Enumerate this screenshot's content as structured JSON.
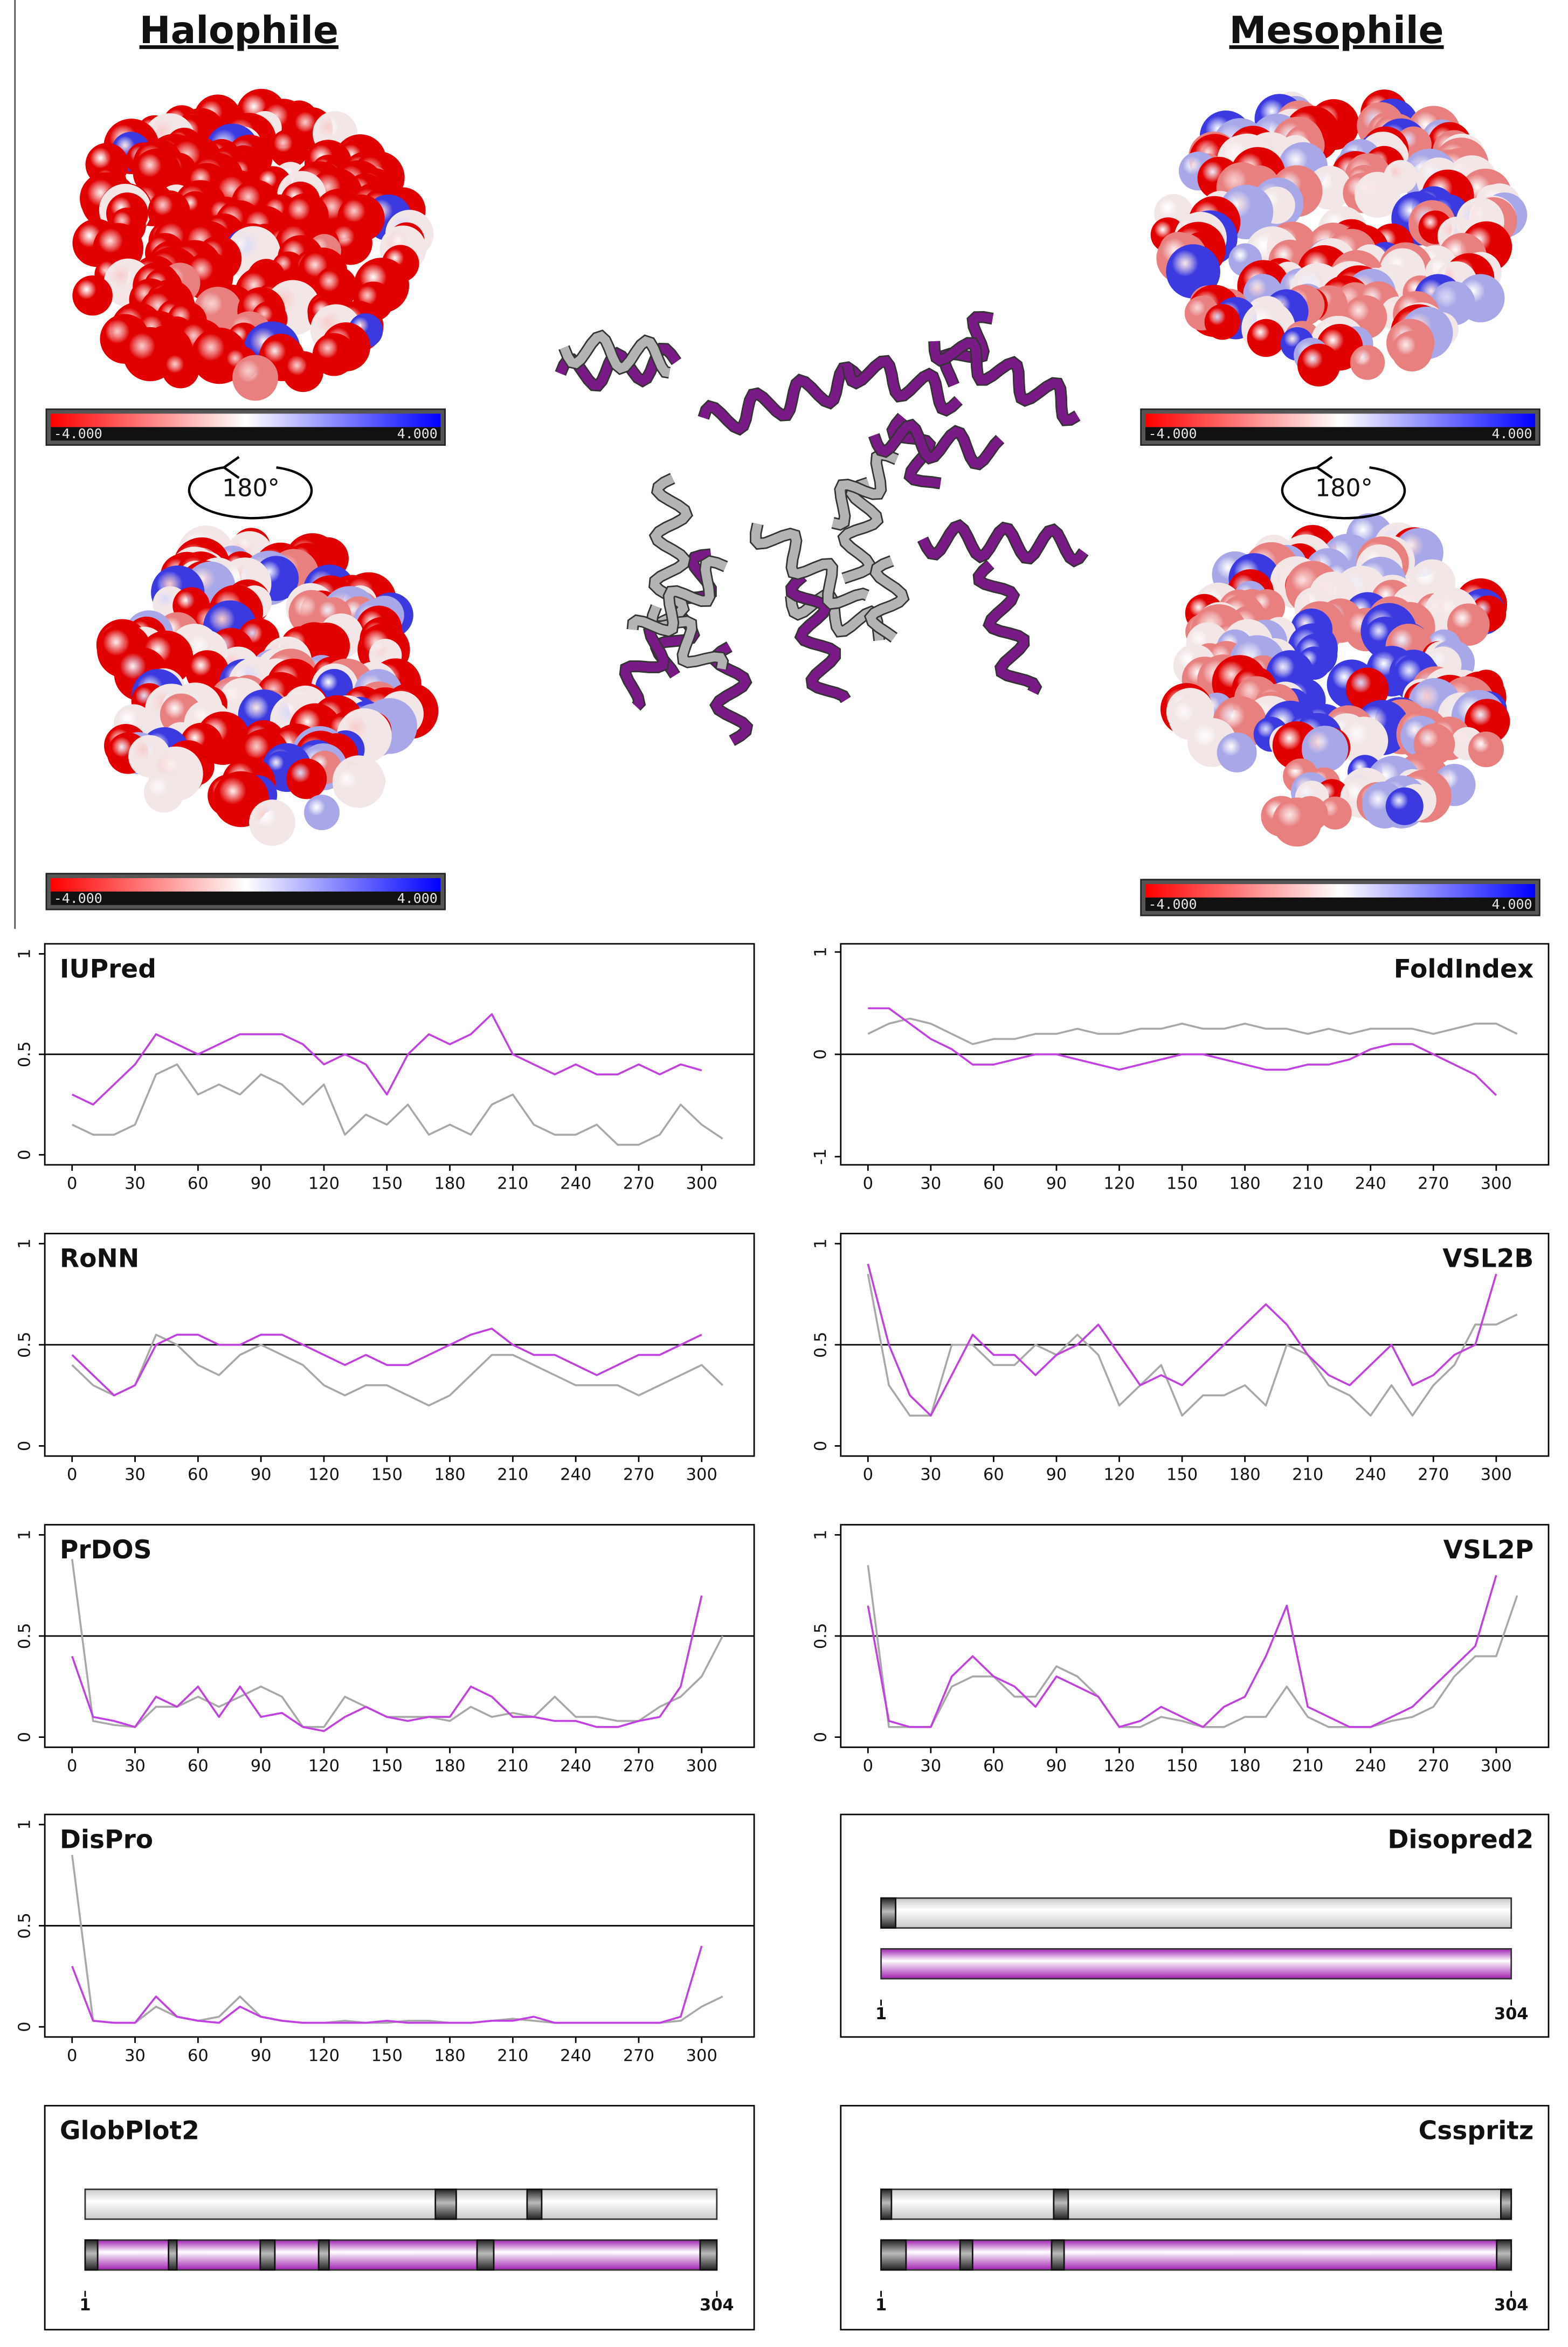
{
  "figure": {
    "halophile_title": "Halophile",
    "mesophile_title": "Mesophile",
    "rotation_label": "180°",
    "colorbar": {
      "colors": [
        "#ff0000",
        "#ffffff",
        "#0000ff"
      ],
      "lim": [
        {
          "value": -4,
          "label": "-4.000"
        },
        {
          "value": 4,
          "label": "4.000"
        }
      ]
    }
  },
  "chart_data": [
    {
      "type": "line",
      "title": "IUPred",
      "x": [
        0,
        10,
        20,
        30,
        40,
        50,
        60,
        70,
        80,
        90,
        100,
        110,
        120,
        130,
        140,
        150,
        160,
        170,
        180,
        190,
        200,
        210,
        220,
        230,
        240,
        250,
        260,
        270,
        280,
        290,
        300,
        310
      ],
      "xlim": [
        -13,
        325
      ],
      "xticks": [
        0,
        30,
        60,
        90,
        120,
        150,
        180,
        210,
        240,
        270,
        300
      ],
      "ylim": [
        -0.05,
        1.05
      ],
      "yticks": [
        0,
        0.5,
        1
      ],
      "threshold": 0.5,
      "series": [
        {
          "color": "#a8a8a8",
          "values": [
            0.15,
            0.1,
            0.1,
            0.15,
            0.4,
            0.45,
            0.3,
            0.35,
            0.3,
            0.4,
            0.35,
            0.25,
            0.35,
            0.1,
            0.2,
            0.15,
            0.25,
            0.1,
            0.15,
            0.1,
            0.25,
            0.3,
            0.15,
            0.1,
            0.1,
            0.15,
            0.05,
            0.05,
            0.1,
            0.25,
            0.15,
            0.08
          ]
        },
        {
          "color": "#c040e0",
          "values": [
            0.3,
            0.25,
            0.35,
            0.45,
            0.6,
            0.55,
            0.5,
            0.55,
            0.6,
            0.6,
            0.6,
            0.55,
            0.45,
            0.5,
            0.45,
            0.3,
            0.5,
            0.6,
            0.55,
            0.6,
            0.7,
            0.5,
            0.45,
            0.4,
            0.45,
            0.4,
            0.4,
            0.45,
            0.4,
            0.45,
            0.42,
            null
          ]
        }
      ]
    },
    {
      "type": "line",
      "title": "FoldIndex",
      "x": [
        0,
        10,
        20,
        30,
        40,
        50,
        60,
        70,
        80,
        90,
        100,
        110,
        120,
        130,
        140,
        150,
        160,
        170,
        180,
        190,
        200,
        210,
        220,
        230,
        240,
        250,
        260,
        270,
        280,
        290,
        300,
        310
      ],
      "xlim": [
        -13,
        325
      ],
      "xticks": [
        0,
        30,
        60,
        90,
        120,
        150,
        180,
        210,
        240,
        270,
        300
      ],
      "ylim": [
        -1.08,
        1.08
      ],
      "yticks": [
        -1,
        0,
        1
      ],
      "threshold": 0,
      "series": [
        {
          "color": "#a8a8a8",
          "values": [
            0.2,
            0.3,
            0.35,
            0.3,
            0.2,
            0.1,
            0.15,
            0.15,
            0.2,
            0.2,
            0.25,
            0.2,
            0.2,
            0.25,
            0.25,
            0.3,
            0.25,
            0.25,
            0.3,
            0.25,
            0.25,
            0.2,
            0.25,
            0.2,
            0.25,
            0.25,
            0.25,
            0.2,
            0.25,
            0.3,
            0.3,
            0.2
          ]
        },
        {
          "color": "#c040e0",
          "values": [
            0.45,
            0.45,
            0.3,
            0.15,
            0.05,
            -0.1,
            -0.1,
            -0.05,
            0,
            0,
            -0.05,
            -0.1,
            -0.15,
            -0.1,
            -0.05,
            0,
            0,
            -0.05,
            -0.1,
            -0.15,
            -0.15,
            -0.1,
            -0.1,
            -0.05,
            0.05,
            0.1,
            0.1,
            0,
            -0.1,
            -0.2,
            -0.4,
            null
          ]
        }
      ]
    },
    {
      "type": "line",
      "title": "RoNN",
      "x": [
        0,
        10,
        20,
        30,
        40,
        50,
        60,
        70,
        80,
        90,
        100,
        110,
        120,
        130,
        140,
        150,
        160,
        170,
        180,
        190,
        200,
        210,
        220,
        230,
        240,
        250,
        260,
        270,
        280,
        290,
        300,
        310
      ],
      "xlim": [
        -13,
        325
      ],
      "xticks": [
        0,
        30,
        60,
        90,
        120,
        150,
        180,
        210,
        240,
        270,
        300
      ],
      "ylim": [
        -0.05,
        1.05
      ],
      "yticks": [
        0,
        0.5,
        1
      ],
      "threshold": 0.5,
      "series": [
        {
          "color": "#a8a8a8",
          "values": [
            0.4,
            0.3,
            0.25,
            0.3,
            0.55,
            0.5,
            0.4,
            0.35,
            0.45,
            0.5,
            0.45,
            0.4,
            0.3,
            0.25,
            0.3,
            0.3,
            0.25,
            0.2,
            0.25,
            0.35,
            0.45,
            0.45,
            0.4,
            0.35,
            0.3,
            0.3,
            0.3,
            0.25,
            0.3,
            0.35,
            0.4,
            0.3
          ]
        },
        {
          "color": "#c040e0",
          "values": [
            0.45,
            0.35,
            0.25,
            0.3,
            0.5,
            0.55,
            0.55,
            0.5,
            0.5,
            0.55,
            0.55,
            0.5,
            0.45,
            0.4,
            0.45,
            0.4,
            0.4,
            0.45,
            0.5,
            0.55,
            0.58,
            0.5,
            0.45,
            0.45,
            0.4,
            0.35,
            0.4,
            0.45,
            0.45,
            0.5,
            0.55,
            null
          ]
        }
      ]
    },
    {
      "type": "line",
      "title": "VSL2B",
      "x": [
        0,
        10,
        20,
        30,
        40,
        50,
        60,
        70,
        80,
        90,
        100,
        110,
        120,
        130,
        140,
        150,
        160,
        170,
        180,
        190,
        200,
        210,
        220,
        230,
        240,
        250,
        260,
        270,
        280,
        290,
        300,
        310
      ],
      "xlim": [
        -13,
        325
      ],
      "xticks": [
        0,
        30,
        60,
        90,
        120,
        150,
        180,
        210,
        240,
        270,
        300
      ],
      "ylim": [
        -0.05,
        1.05
      ],
      "yticks": [
        0,
        0.5,
        1
      ],
      "threshold": 0.5,
      "series": [
        {
          "color": "#a8a8a8",
          "values": [
            0.85,
            0.3,
            0.15,
            0.15,
            0.5,
            0.5,
            0.4,
            0.4,
            0.5,
            0.45,
            0.55,
            0.45,
            0.2,
            0.3,
            0.4,
            0.15,
            0.25,
            0.25,
            0.3,
            0.2,
            0.5,
            0.45,
            0.3,
            0.25,
            0.15,
            0.3,
            0.15,
            0.3,
            0.4,
            0.6,
            0.6,
            0.65
          ]
        },
        {
          "color": "#c040e0",
          "values": [
            0.9,
            0.5,
            0.25,
            0.15,
            0.35,
            0.55,
            0.45,
            0.45,
            0.35,
            0.45,
            0.5,
            0.6,
            0.45,
            0.3,
            0.35,
            0.3,
            0.4,
            0.5,
            0.6,
            0.7,
            0.6,
            0.45,
            0.35,
            0.3,
            0.4,
            0.5,
            0.3,
            0.35,
            0.45,
            0.5,
            0.85,
            null
          ]
        }
      ]
    },
    {
      "type": "line",
      "title": "PrDOS",
      "x": [
        0,
        10,
        20,
        30,
        40,
        50,
        60,
        70,
        80,
        90,
        100,
        110,
        120,
        130,
        140,
        150,
        160,
        170,
        180,
        190,
        200,
        210,
        220,
        230,
        240,
        250,
        260,
        270,
        280,
        290,
        300,
        310
      ],
      "xlim": [
        -13,
        325
      ],
      "xticks": [
        0,
        30,
        60,
        90,
        120,
        150,
        180,
        210,
        240,
        270,
        300
      ],
      "ylim": [
        -0.05,
        1.05
      ],
      "yticks": [
        0,
        0.5,
        1
      ],
      "threshold": 0.5,
      "series": [
        {
          "color": "#a8a8a8",
          "values": [
            0.88,
            0.08,
            0.06,
            0.05,
            0.15,
            0.15,
            0.2,
            0.15,
            0.2,
            0.25,
            0.2,
            0.05,
            0.05,
            0.2,
            0.15,
            0.1,
            0.1,
            0.1,
            0.08,
            0.15,
            0.1,
            0.12,
            0.1,
            0.2,
            0.1,
            0.1,
            0.08,
            0.08,
            0.15,
            0.2,
            0.3,
            0.5
          ]
        },
        {
          "color": "#c040e0",
          "values": [
            0.4,
            0.1,
            0.08,
            0.05,
            0.2,
            0.15,
            0.25,
            0.1,
            0.25,
            0.1,
            0.12,
            0.05,
            0.03,
            0.1,
            0.15,
            0.1,
            0.08,
            0.1,
            0.1,
            0.25,
            0.2,
            0.1,
            0.1,
            0.08,
            0.08,
            0.05,
            0.05,
            0.08,
            0.1,
            0.25,
            0.7,
            null
          ]
        }
      ]
    },
    {
      "type": "line",
      "title": "VSL2P",
      "x": [
        0,
        10,
        20,
        30,
        40,
        50,
        60,
        70,
        80,
        90,
        100,
        110,
        120,
        130,
        140,
        150,
        160,
        170,
        180,
        190,
        200,
        210,
        220,
        230,
        240,
        250,
        260,
        270,
        280,
        290,
        300,
        310
      ],
      "xlim": [
        -13,
        325
      ],
      "xticks": [
        0,
        30,
        60,
        90,
        120,
        150,
        180,
        210,
        240,
        270,
        300
      ],
      "ylim": [
        -0.05,
        1.05
      ],
      "yticks": [
        0,
        0.5,
        1
      ],
      "threshold": 0.5,
      "series": [
        {
          "color": "#a8a8a8",
          "values": [
            0.85,
            0.05,
            0.05,
            0.05,
            0.25,
            0.3,
            0.3,
            0.2,
            0.2,
            0.35,
            0.3,
            0.2,
            0.05,
            0.05,
            0.1,
            0.08,
            0.05,
            0.05,
            0.1,
            0.1,
            0.25,
            0.1,
            0.05,
            0.05,
            0.05,
            0.08,
            0.1,
            0.15,
            0.3,
            0.4,
            0.4,
            0.7
          ]
        },
        {
          "color": "#c040e0",
          "values": [
            0.65,
            0.08,
            0.05,
            0.05,
            0.3,
            0.4,
            0.3,
            0.25,
            0.15,
            0.3,
            0.25,
            0.2,
            0.05,
            0.08,
            0.15,
            0.1,
            0.05,
            0.15,
            0.2,
            0.4,
            0.65,
            0.15,
            0.1,
            0.05,
            0.05,
            0.1,
            0.15,
            0.25,
            0.35,
            0.45,
            0.8,
            null
          ]
        }
      ]
    },
    {
      "type": "line",
      "title": "DisPro",
      "x": [
        0,
        10,
        20,
        30,
        40,
        50,
        60,
        70,
        80,
        90,
        100,
        110,
        120,
        130,
        140,
        150,
        160,
        170,
        180,
        190,
        200,
        210,
        220,
        230,
        240,
        250,
        260,
        270,
        280,
        290,
        300,
        310
      ],
      "xlim": [
        -13,
        325
      ],
      "xticks": [
        0,
        30,
        60,
        90,
        120,
        150,
        180,
        210,
        240,
        270,
        300
      ],
      "ylim": [
        -0.05,
        1.05
      ],
      "yticks": [
        0,
        0.5,
        1
      ],
      "threshold": 0.5,
      "series": [
        {
          "color": "#a8a8a8",
          "values": [
            0.85,
            0.03,
            0.02,
            0.02,
            0.1,
            0.05,
            0.03,
            0.05,
            0.15,
            0.05,
            0.03,
            0.02,
            0.02,
            0.03,
            0.02,
            0.02,
            0.03,
            0.03,
            0.02,
            0.02,
            0.03,
            0.04,
            0.03,
            0.02,
            0.02,
            0.02,
            0.02,
            0.02,
            0.02,
            0.03,
            0.1,
            0.15
          ]
        },
        {
          "color": "#c040e0",
          "values": [
            0.3,
            0.03,
            0.02,
            0.02,
            0.15,
            0.05,
            0.03,
            0.02,
            0.1,
            0.05,
            0.03,
            0.02,
            0.02,
            0.02,
            0.02,
            0.03,
            0.02,
            0.02,
            0.02,
            0.02,
            0.03,
            0.03,
            0.05,
            0.02,
            0.02,
            0.02,
            0.02,
            0.02,
            0.02,
            0.05,
            0.4,
            null
          ]
        }
      ]
    },
    {
      "type": "segments",
      "title": "Disopred2",
      "xlim": [
        1,
        304
      ],
      "xticks": [
        1,
        304
      ],
      "series": [
        {
          "color": "#c8c8c8",
          "regions": [
            [
              1,
              8
            ]
          ]
        },
        {
          "color": "#a020b0",
          "regions": []
        }
      ]
    },
    {
      "type": "segments",
      "title": "GlobPlot2",
      "xlim": [
        1,
        304
      ],
      "xticks": [
        1,
        304
      ],
      "series": [
        {
          "color": "#c8c8c8",
          "regions": [
            [
              169,
              179
            ],
            [
              213,
              220
            ]
          ]
        },
        {
          "color": "#a020b0",
          "regions": [
            [
              1,
              7
            ],
            [
              41,
              45
            ],
            [
              85,
              92
            ],
            [
              113,
              118
            ],
            [
              189,
              197
            ],
            [
              296,
              304
            ]
          ]
        }
      ]
    },
    {
      "type": "segments",
      "title": "Csspritz",
      "xlim": [
        1,
        304
      ],
      "xticks": [
        1,
        304
      ],
      "series": [
        {
          "color": "#c8c8c8",
          "regions": [
            [
              1,
              6
            ],
            [
              84,
              91
            ],
            [
              299,
              304
            ]
          ]
        },
        {
          "color": "#a020b0",
          "regions": [
            [
              1,
              13
            ],
            [
              39,
              45
            ],
            [
              83,
              89
            ],
            [
              297,
              304
            ]
          ]
        }
      ]
    }
  ]
}
